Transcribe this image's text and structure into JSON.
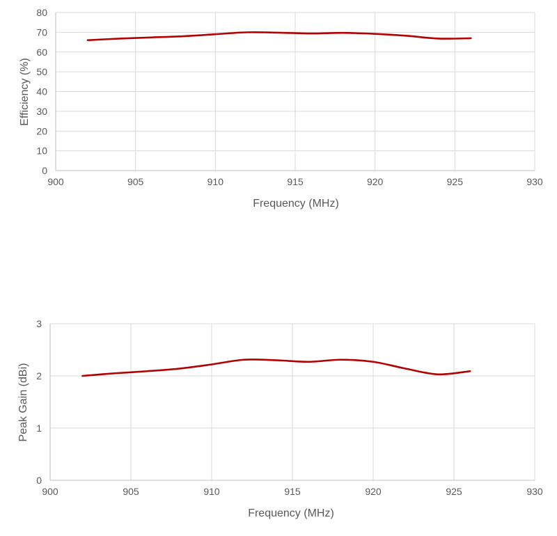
{
  "colors": {
    "series": "#b30000",
    "grid": "#d9d9d9",
    "text": "#595959"
  },
  "chart_data": [
    {
      "type": "line",
      "title": "",
      "xlabel": "Frequency (MHz)",
      "ylabel": "Efficiency (%)",
      "xlim": [
        900,
        930
      ],
      "ylim": [
        0,
        80
      ],
      "x_ticks": [
        900,
        905,
        910,
        915,
        920,
        925,
        930
      ],
      "y_ticks": [
        0,
        10,
        20,
        30,
        40,
        50,
        60,
        70,
        80
      ],
      "grid": true,
      "series": [
        {
          "x": [
            902,
            904,
            906,
            908,
            910,
            912,
            914,
            916,
            918,
            920,
            922,
            924,
            926
          ],
          "values": [
            66,
            66.8,
            67.4,
            68,
            69,
            70,
            69.8,
            69.4,
            69.7,
            69.2,
            68.2,
            66.8,
            67
          ]
        }
      ]
    },
    {
      "type": "line",
      "title": "",
      "xlabel": "Frequency (MHz)",
      "ylabel": "Peak Gain (dBi)",
      "xlim": [
        900,
        930
      ],
      "ylim": [
        0,
        3
      ],
      "x_ticks": [
        900,
        905,
        910,
        915,
        920,
        925,
        930
      ],
      "y_ticks": [
        0,
        1,
        2,
        3
      ],
      "grid": true,
      "series": [
        {
          "x": [
            902,
            904,
            906,
            908,
            910,
            912,
            914,
            916,
            918,
            920,
            922,
            924,
            926
          ],
          "values": [
            2.0,
            2.05,
            2.09,
            2.14,
            2.22,
            2.31,
            2.3,
            2.27,
            2.31,
            2.27,
            2.14,
            2.03,
            2.09
          ]
        }
      ]
    }
  ]
}
